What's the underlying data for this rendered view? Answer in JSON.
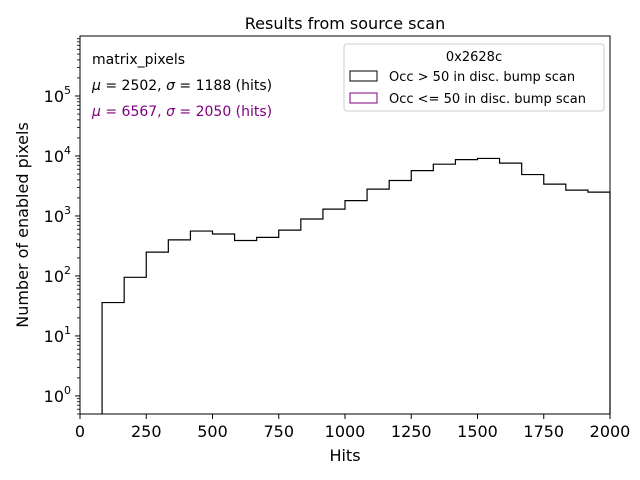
{
  "chart_data": {
    "type": "histogram",
    "title": "Results from source scan",
    "xlabel": "Hits",
    "ylabel": "Number of enabled pixels",
    "xlim": [
      0,
      2000
    ],
    "ylim": [
      0.5,
      1000000
    ],
    "yscale": "log",
    "grid": false,
    "x_ticks": [
      {
        "value": 0,
        "label": "0"
      },
      {
        "value": 250,
        "label": "250"
      },
      {
        "value": 500,
        "label": "500"
      },
      {
        "value": 750,
        "label": "750"
      },
      {
        "value": 1000,
        "label": "1000"
      },
      {
        "value": 1250,
        "label": "1250"
      },
      {
        "value": 1500,
        "label": "1500"
      },
      {
        "value": 1750,
        "label": "1750"
      },
      {
        "value": 2000,
        "label": "2000"
      }
    ],
    "y_ticks": [
      {
        "value": 1,
        "base": "10",
        "exp": "0"
      },
      {
        "value": 10,
        "base": "10",
        "exp": "1"
      },
      {
        "value": 100,
        "base": "10",
        "exp": "2"
      },
      {
        "value": 1000,
        "base": "10",
        "exp": "3"
      },
      {
        "value": 10000,
        "base": "10",
        "exp": "4"
      },
      {
        "value": 100000,
        "base": "10",
        "exp": "5"
      }
    ],
    "bin_edges": [
      0,
      83.3,
      166.7,
      250,
      333.3,
      416.7,
      500,
      583.3,
      666.7,
      750,
      833.3,
      916.7,
      1000,
      1083.3,
      1166.7,
      1250,
      1333.3,
      1416.7,
      1500,
      1583.3,
      1666.7,
      1750,
      1833.3,
      1916.7,
      2000
    ],
    "series": [
      {
        "name": "Occ > 50 in disc. bump scan",
        "color": "#000000",
        "values": [
          0,
          36,
          95,
          250,
          400,
          560,
          500,
          390,
          440,
          580,
          890,
          1300,
          1800,
          2800,
          3900,
          5700,
          7300,
          8700,
          9100,
          7600,
          4900,
          3400,
          2700,
          2500
        ]
      },
      {
        "name": "Occ <= 50 in disc. bump scan",
        "color": "#800080",
        "values": [
          0,
          0,
          0,
          0,
          0,
          0,
          0,
          0,
          0,
          0,
          0,
          0,
          0,
          0,
          0,
          0,
          0,
          0,
          0,
          0,
          0,
          0,
          0,
          0
        ]
      }
    ],
    "legend": {
      "title": "0x2628c",
      "placement": "top-right"
    },
    "annotations": [
      {
        "text": "matrix_pixels",
        "color": "#000000"
      },
      {
        "mu_label": "μ",
        "mu_value": " = 2502, ",
        "sigma_label": "σ",
        "sigma_value": " = 1188 (hits)",
        "color": "#000000"
      },
      {
        "mu_label": "μ",
        "mu_value": " = 6567, ",
        "sigma_label": "σ",
        "sigma_value": " = 2050 (hits)",
        "color": "#800080"
      }
    ]
  }
}
